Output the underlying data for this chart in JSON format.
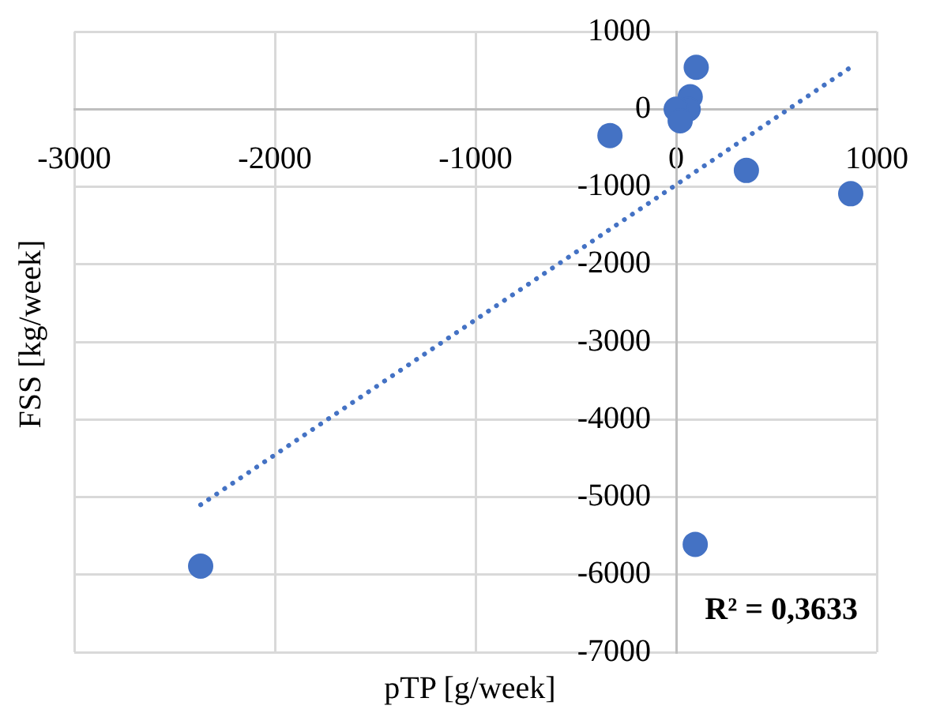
{
  "chart_data": {
    "type": "scatter",
    "xlabel": "pTP [g/week]",
    "ylabel": "FSS [kg/week]",
    "xlim": [
      -3000,
      1000
    ],
    "xticks": [
      -3000,
      -2000,
      -1000,
      0,
      1000
    ],
    "ylim": [
      -7000,
      1000
    ],
    "yticks": [
      -7000,
      -6000,
      -5000,
      -4000,
      -3000,
      -2000,
      -1000,
      0,
      1000
    ],
    "grid": true,
    "marker": "circle",
    "legend": false,
    "series": [
      {
        "type": "scatter",
        "color": "#4472c4",
        "x": [
          100,
          70,
          60,
          0,
          20,
          -330,
          350,
          870,
          -2370,
          95
        ],
        "values": [
          540,
          160,
          0,
          0,
          -150,
          -340,
          -790,
          -1090,
          -5890,
          -5610
        ]
      },
      {
        "type": "line",
        "color": "#4472c4",
        "line_style": "dotted",
        "marker": "none",
        "x": [
          -2370,
          870
        ],
        "values": [
          -5100,
          540
        ]
      }
    ],
    "annotations": [
      "R² = 0,3633"
    ]
  }
}
